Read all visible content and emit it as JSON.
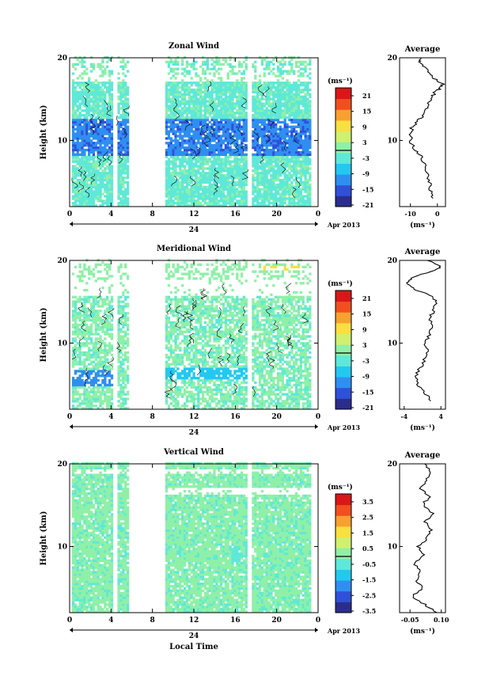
{
  "colors": {
    "frame": "#000000",
    "contour": "#000000",
    "colorbar_stops": [
      "#2b2d8c",
      "#3050d8",
      "#2f8ff0",
      "#23c8f0",
      "#5fe8d8",
      "#8ff0a8",
      "#d0f070",
      "#f8e040",
      "#f8a030",
      "#f05020",
      "#d81818"
    ]
  },
  "chart_data": [
    {
      "type": "heatmap",
      "title": "Zonal Wind",
      "ylabel": "Height (km)",
      "xlabel": "",
      "x_ticks": [
        "0",
        "4",
        "8",
        "12",
        "16",
        "20",
        "0"
      ],
      "y_ticks": [
        "20",
        "10"
      ],
      "ylim": [
        2,
        20
      ],
      "date_label": "24",
      "date_right": "Apr 2013",
      "colorbar": {
        "unit": "(ms⁻¹)",
        "labels": [
          "21",
          "15",
          "9",
          "3",
          "-3",
          "-9",
          "-15",
          "-21"
        ],
        "range": [
          -24,
          24
        ]
      },
      "average": {
        "title": "Average",
        "unit": "(ms⁻¹)",
        "x_ticks": [
          "-10",
          "0"
        ],
        "xlim": [
          -14,
          3
        ],
        "y_ticks": [
          "20",
          "10"
        ],
        "profile": [
          [
            -2,
            3
          ],
          [
            -2.5,
            4
          ],
          [
            -3,
            5
          ],
          [
            -3.5,
            6
          ],
          [
            -4.5,
            7
          ],
          [
            -6,
            8
          ],
          [
            -8,
            8.8
          ],
          [
            -9.5,
            9.5
          ],
          [
            -10,
            10.5
          ],
          [
            -9.5,
            11.5
          ],
          [
            -7.5,
            12.3
          ],
          [
            -5,
            13
          ],
          [
            -4,
            13.8
          ],
          [
            -3,
            14.5
          ],
          [
            -2,
            15.2
          ],
          [
            -1,
            15.8
          ],
          [
            1,
            16.3
          ],
          [
            2,
            16.8
          ],
          [
            -1,
            17.5
          ],
          [
            -3,
            18.3
          ],
          [
            -5,
            19
          ],
          [
            -7,
            19.5
          ],
          [
            -6,
            20
          ]
        ]
      }
    },
    {
      "type": "heatmap",
      "title": "Meridional Wind",
      "ylabel": "Height (km)",
      "xlabel": "",
      "x_ticks": [
        "0",
        "4",
        "8",
        "12",
        "16",
        "20",
        "0"
      ],
      "y_ticks": [
        "20",
        "10"
      ],
      "ylim": [
        2,
        20
      ],
      "date_label": "24",
      "date_right": "Apr 2013",
      "colorbar": {
        "unit": "(ms⁻¹)",
        "labels": [
          "21",
          "15",
          "9",
          "3",
          "-3",
          "-9",
          "-15",
          "-21"
        ],
        "range": [
          -24,
          24
        ]
      },
      "average": {
        "title": "Average",
        "unit": "(ms⁻¹)",
        "x_ticks": [
          "-4",
          "4"
        ],
        "xlim": [
          -5,
          5
        ],
        "y_ticks": [
          "20",
          "10"
        ],
        "profile": [
          [
            2,
            3
          ],
          [
            0.5,
            4
          ],
          [
            -1,
            5
          ],
          [
            -1.5,
            6
          ],
          [
            -0.5,
            7
          ],
          [
            0.5,
            8
          ],
          [
            1,
            9
          ],
          [
            0.5,
            10
          ],
          [
            1.5,
            11
          ],
          [
            2,
            12
          ],
          [
            1.5,
            13
          ],
          [
            2.5,
            14
          ],
          [
            3,
            15
          ],
          [
            1.5,
            15.8
          ],
          [
            -2,
            16.5
          ],
          [
            -3.5,
            17.3
          ],
          [
            -2,
            18
          ],
          [
            3,
            18.8
          ],
          [
            4,
            19.3
          ],
          [
            1,
            20
          ]
        ]
      }
    },
    {
      "type": "heatmap",
      "title": "Vertical Wind",
      "ylabel": "Height (km)",
      "xlabel": "Local Time",
      "x_ticks": [
        "0",
        "4",
        "8",
        "12",
        "16",
        "20",
        "0"
      ],
      "y_ticks": [
        "20",
        "10"
      ],
      "ylim": [
        2,
        20
      ],
      "date_label": "24",
      "date_right": "Apr 2013",
      "colorbar": {
        "unit": "(ms⁻¹)",
        "labels": [
          "3.5",
          "2.5",
          "1.5",
          "0.5",
          "-0.5",
          "-1.5",
          "-2.5",
          "-3.5"
        ],
        "range": [
          -4,
          4
        ]
      },
      "average": {
        "title": "Average",
        "unit": "(ms⁻¹)",
        "x_ticks": [
          "-0.05",
          "0.10"
        ],
        "xlim": [
          -0.1,
          0.12
        ],
        "y_ticks": [
          "20",
          "10"
        ],
        "profile": [
          [
            0.08,
            2
          ],
          [
            0.02,
            3
          ],
          [
            -0.04,
            4
          ],
          [
            0.01,
            5
          ],
          [
            -0.02,
            6
          ],
          [
            0.0,
            7
          ],
          [
            -0.03,
            8
          ],
          [
            0.02,
            9
          ],
          [
            -0.01,
            10
          ],
          [
            0.03,
            11
          ],
          [
            0.05,
            12
          ],
          [
            0.02,
            13
          ],
          [
            0.06,
            14
          ],
          [
            0.01,
            15
          ],
          [
            0.04,
            16
          ],
          [
            0.0,
            17
          ],
          [
            0.03,
            18
          ],
          [
            0.05,
            19
          ],
          [
            0.02,
            20
          ]
        ]
      }
    }
  ]
}
